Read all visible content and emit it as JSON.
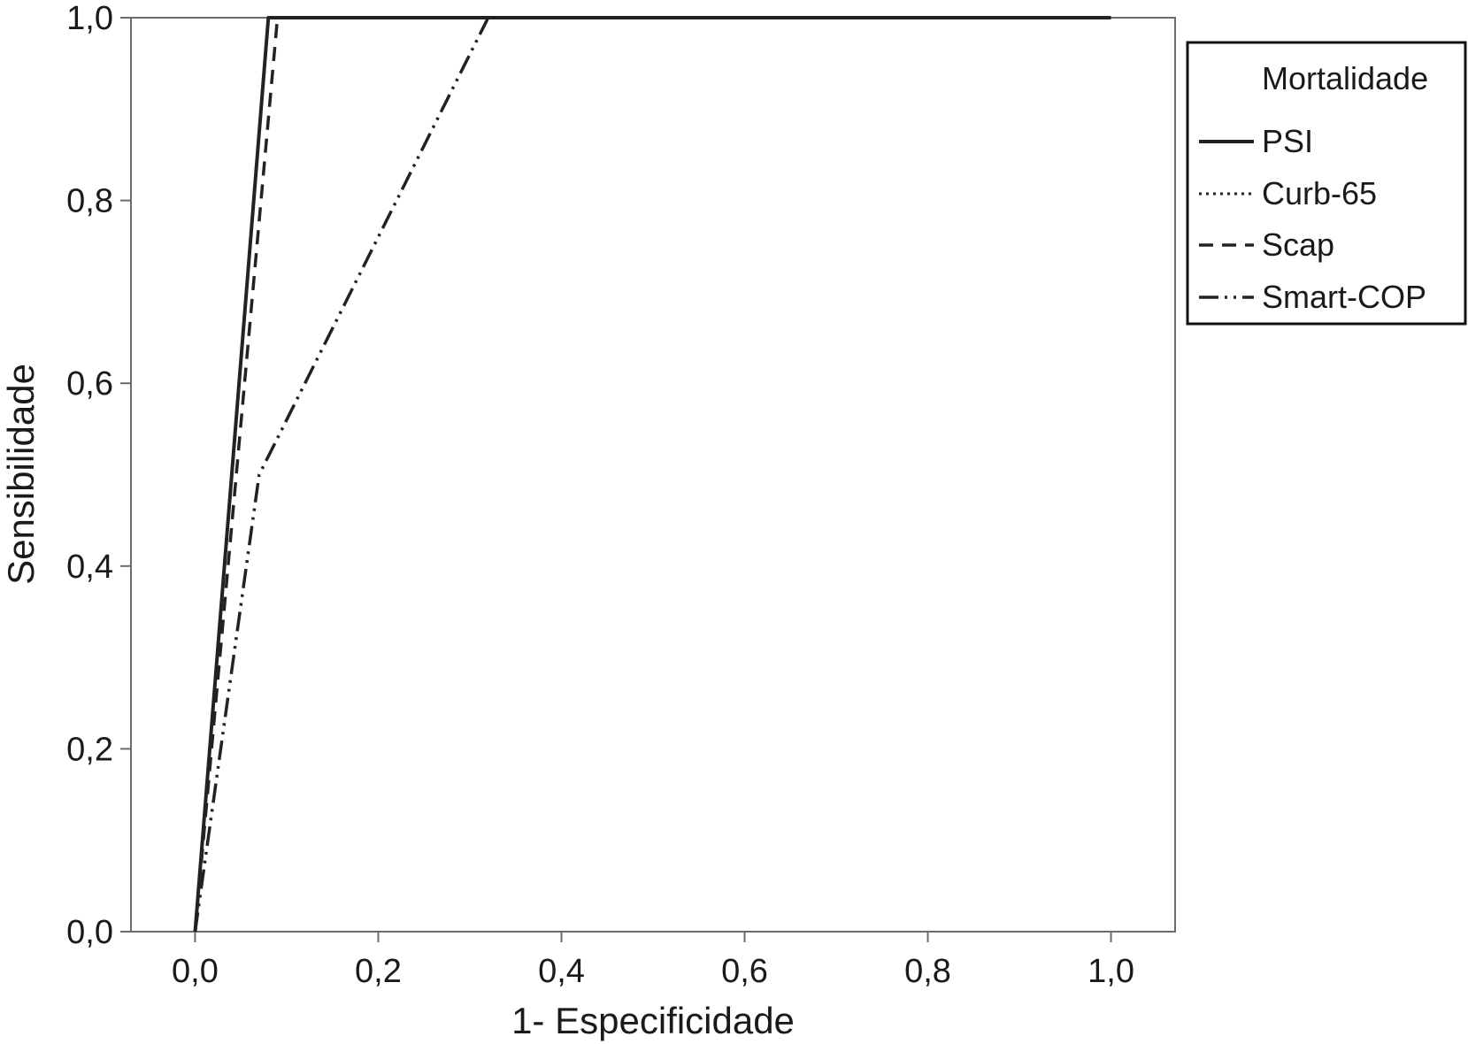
{
  "chart_data": {
    "type": "line",
    "title": "",
    "xlabel": "1- Especificidade",
    "ylabel": "Sensibilidade",
    "xlim": [
      -0.07,
      1.07
    ],
    "ylim": [
      0.0,
      1.0
    ],
    "x_ticks": [
      0.0,
      0.2,
      0.4,
      0.6,
      0.8,
      1.0
    ],
    "y_ticks": [
      0.0,
      0.2,
      0.4,
      0.6,
      0.8,
      1.0
    ],
    "x_tick_labels": [
      "0,0",
      "0,2",
      "0,4",
      "0,6",
      "0,8",
      "1,0"
    ],
    "y_tick_labels": [
      "0,0",
      "0,2",
      "0,4",
      "0,6",
      "0,8",
      "1,0"
    ],
    "grid": false,
    "legend": {
      "title": "Mortalidade",
      "placement": "right, outside plot area, top"
    },
    "series": [
      {
        "name": "PSI",
        "style": "solid",
        "color": "#222222",
        "points": [
          [
            0.0,
            0.0
          ],
          [
            0.08,
            1.0
          ],
          [
            1.0,
            1.0
          ]
        ]
      },
      {
        "name": "Curb-65",
        "style": "dotted",
        "color": "#222222",
        "points": [
          [
            0.0,
            0.0
          ],
          [
            0.08,
            1.0
          ],
          [
            1.0,
            1.0
          ]
        ]
      },
      {
        "name": "Scap",
        "style": "dashed",
        "color": "#222222",
        "points": [
          [
            0.0,
            0.0
          ],
          [
            0.09,
            1.0
          ],
          [
            1.0,
            1.0
          ]
        ]
      },
      {
        "name": "Smart-COP",
        "style": "dashdotdot",
        "color": "#222222",
        "points": [
          [
            0.0,
            0.0
          ],
          [
            0.07,
            0.5
          ],
          [
            0.32,
            1.0
          ],
          [
            1.0,
            1.0
          ]
        ]
      }
    ]
  }
}
